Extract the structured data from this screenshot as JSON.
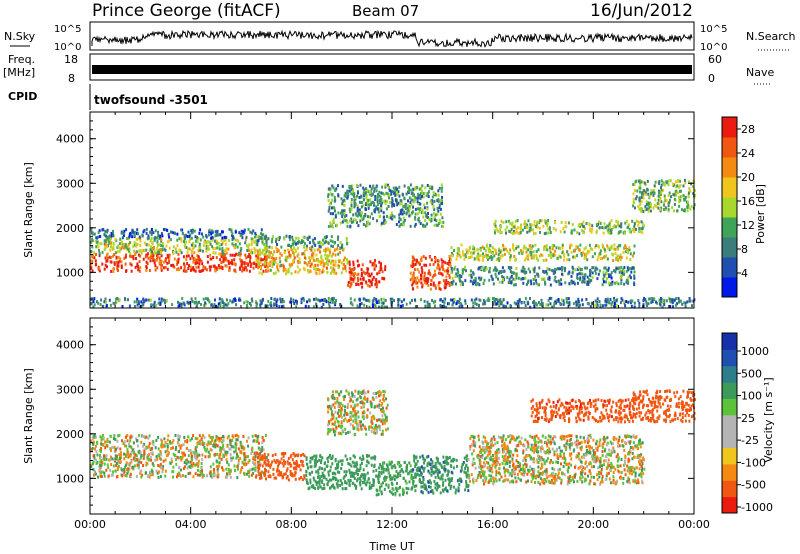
{
  "header": {
    "station": "Prince George (fitACF)",
    "beam": "Beam 07",
    "date": "16/Jun/2012"
  },
  "strips": {
    "nsky_label": "N.Sky",
    "nsky_ticks": [
      "10^5",
      "10^0"
    ],
    "nsearch_label": "N.Search",
    "nsearch_ticks": [
      "10^5",
      "10^0"
    ],
    "freq_label": "Freq.",
    "freq_unit": "[MHz]",
    "freq_ticks": [
      "18",
      "8"
    ],
    "nave_label": "Nave",
    "nave_ticks": [
      "60",
      "0"
    ],
    "cpid_label": "CPID",
    "cpid_value": "twofsound -3501"
  },
  "colors": {
    "power_scale": [
      "#0018e8",
      "#1f4fb0",
      "#3a7d7a",
      "#3fa45a",
      "#a8d82e",
      "#f0c61c",
      "#f48a12",
      "#f05812",
      "#ec1b0f"
    ],
    "velocity_scale": [
      "#ec1b0f",
      "#f05812",
      "#f48a12",
      "#f0c61c",
      "#b4b4b4",
      "#b4b4b4",
      "#5cc23a",
      "#3c9a5a",
      "#2e7d8a",
      "#1f4fb0",
      "#1530a8"
    ],
    "ground_scatter": "#b4b4b4"
  },
  "chart_data": [
    {
      "type": "heatmap",
      "name": "power",
      "xlabel": "Time UT",
      "ylabel": "Slant Range [km]",
      "x_range": [
        "00:00",
        "24:00"
      ],
      "x_ticks": [
        "00:00",
        "04:00",
        "08:00",
        "12:00",
        "16:00",
        "20:00",
        "00:00"
      ],
      "ylim": [
        200,
        4600
      ],
      "y_ticks": [
        "1000",
        "2000",
        "3000",
        "4000"
      ],
      "colorbar": {
        "label": "Power [dB]",
        "ticks": [
          "4",
          "8",
          "12",
          "16",
          "20",
          "24",
          "28"
        ],
        "range": [
          0,
          30
        ]
      },
      "bands": [
        {
          "t0": 0.0,
          "t1": 7.0,
          "r0": 1050,
          "r1": 1450,
          "level": 27
        },
        {
          "t0": 0.0,
          "t1": 7.0,
          "r0": 1450,
          "r1": 1800,
          "level": 15
        },
        {
          "t0": 0.0,
          "t1": 7.0,
          "r0": 1800,
          "r1": 2000,
          "level": 6
        },
        {
          "t0": 6.5,
          "t1": 10.2,
          "r0": 1000,
          "r1": 1600,
          "level": 19
        },
        {
          "t0": 6.5,
          "t1": 10.2,
          "r0": 1600,
          "r1": 1850,
          "level": 10
        },
        {
          "t0": 10.2,
          "t1": 11.7,
          "r0": 700,
          "r1": 1300,
          "level": 28
        },
        {
          "t0": 12.7,
          "t1": 14.3,
          "r0": 650,
          "r1": 1400,
          "level": 26
        },
        {
          "t0": 14.3,
          "t1": 21.6,
          "r0": 1300,
          "r1": 1650,
          "level": 16
        },
        {
          "t0": 14.3,
          "t1": 21.6,
          "r0": 750,
          "r1": 1150,
          "level": 9
        },
        {
          "t0": 16.0,
          "t1": 22.0,
          "r0": 1900,
          "r1": 2200,
          "level": 14
        },
        {
          "t0": 9.4,
          "t1": 14.0,
          "r0": 2050,
          "r1": 3000,
          "level": 10
        },
        {
          "t0": 21.5,
          "t1": 24.0,
          "r0": 2400,
          "r1": 3100,
          "level": 13
        },
        {
          "t0": 0.0,
          "t1": 24.0,
          "r0": 250,
          "r1": 450,
          "level": 8
        }
      ]
    },
    {
      "type": "heatmap",
      "name": "velocity",
      "xlabel": "Time UT",
      "ylabel": "Slant Range [km]",
      "x_range": [
        "00:00",
        "24:00"
      ],
      "x_ticks": [
        "00:00",
        "04:00",
        "08:00",
        "12:00",
        "16:00",
        "20:00",
        "00:00"
      ],
      "ylim": [
        200,
        4600
      ],
      "y_ticks": [
        "1000",
        "2000",
        "3000",
        "4000"
      ],
      "colorbar": {
        "label": "Velocity [m s⁻¹]",
        "ticks": [
          "1000",
          "500",
          "100",
          "25",
          "-25",
          "-100",
          "-500",
          "-1000"
        ]
      },
      "bands": [
        {
          "t0": 0.0,
          "t1": 7.0,
          "r0": 1050,
          "r1": 2000,
          "velocity": 0
        },
        {
          "t0": 6.5,
          "t1": 8.5,
          "r0": 1000,
          "r1": 1600,
          "velocity": -300
        },
        {
          "t0": 8.5,
          "t1": 11.3,
          "r0": 800,
          "r1": 1550,
          "velocity": 250
        },
        {
          "t0": 11.3,
          "t1": 12.8,
          "r0": 650,
          "r1": 1400,
          "velocity": 200
        },
        {
          "t0": 12.8,
          "t1": 15.0,
          "r0": 700,
          "r1": 1550,
          "velocity": 400
        },
        {
          "t0": 15.0,
          "t1": 22.0,
          "r0": 900,
          "r1": 2000,
          "velocity": 0
        },
        {
          "t0": 17.5,
          "t1": 21.5,
          "r0": 2300,
          "r1": 2800,
          "velocity": -400
        },
        {
          "t0": 21.5,
          "t1": 24.0,
          "r0": 2300,
          "r1": 3000,
          "velocity": -250
        },
        {
          "t0": 9.4,
          "t1": 11.8,
          "r0": 2000,
          "r1": 3000,
          "velocity": 0
        }
      ]
    }
  ]
}
